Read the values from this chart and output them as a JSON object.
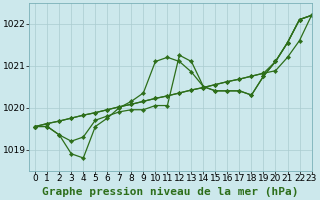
{
  "background_color": "#cce8ec",
  "grid_color": "#aaccd0",
  "line_color": "#2d6e1a",
  "title": "Graphe pression niveau de la mer (hPa)",
  "xlim": [
    -0.5,
    23
  ],
  "ylim": [
    1018.5,
    1022.5
  ],
  "yticks": [
    1019,
    1020,
    1021,
    1022
  ],
  "xticks": [
    0,
    1,
    2,
    3,
    4,
    5,
    6,
    7,
    8,
    9,
    10,
    11,
    12,
    13,
    14,
    15,
    16,
    17,
    18,
    19,
    20,
    21,
    22,
    23
  ],
  "series": [
    [
      1019.55,
      1019.55,
      1019.35,
      1018.9,
      1018.8,
      1019.55,
      1019.75,
      1020.0,
      1020.15,
      1020.35,
      1021.1,
      1021.2,
      1021.1,
      1020.85,
      1020.5,
      1020.4,
      1020.4,
      1020.4,
      1020.3,
      1020.75,
      1021.1,
      1021.55,
      1022.1,
      1022.2
    ],
    [
      1019.55,
      1019.55,
      1019.35,
      1019.2,
      1019.3,
      1019.7,
      1019.8,
      1019.9,
      1019.95,
      1019.95,
      1020.05,
      1020.05,
      1021.25,
      1021.1,
      1020.5,
      1020.4,
      1020.4,
      1020.4,
      1020.3,
      1020.75,
      1021.1,
      1021.55,
      1022.1,
      1022.2
    ],
    [
      1019.55,
      1019.62,
      1019.68,
      1019.75,
      1019.82,
      1019.88,
      1019.95,
      1020.02,
      1020.08,
      1020.15,
      1020.22,
      1020.28,
      1020.35,
      1020.42,
      1020.48,
      1020.55,
      1020.62,
      1020.68,
      1020.75,
      1020.82,
      1020.88,
      1021.2,
      1021.6,
      1022.2
    ],
    [
      1019.55,
      1019.62,
      1019.68,
      1019.75,
      1019.82,
      1019.88,
      1019.95,
      1020.02,
      1020.08,
      1020.15,
      1020.22,
      1020.28,
      1020.35,
      1020.42,
      1020.48,
      1020.55,
      1020.62,
      1020.68,
      1020.75,
      1020.82,
      1021.1,
      1021.55,
      1022.1,
      1022.2
    ]
  ],
  "title_fontsize": 8,
  "tick_fontsize": 6.5,
  "linewidth": 0.9,
  "markersize": 2.2
}
